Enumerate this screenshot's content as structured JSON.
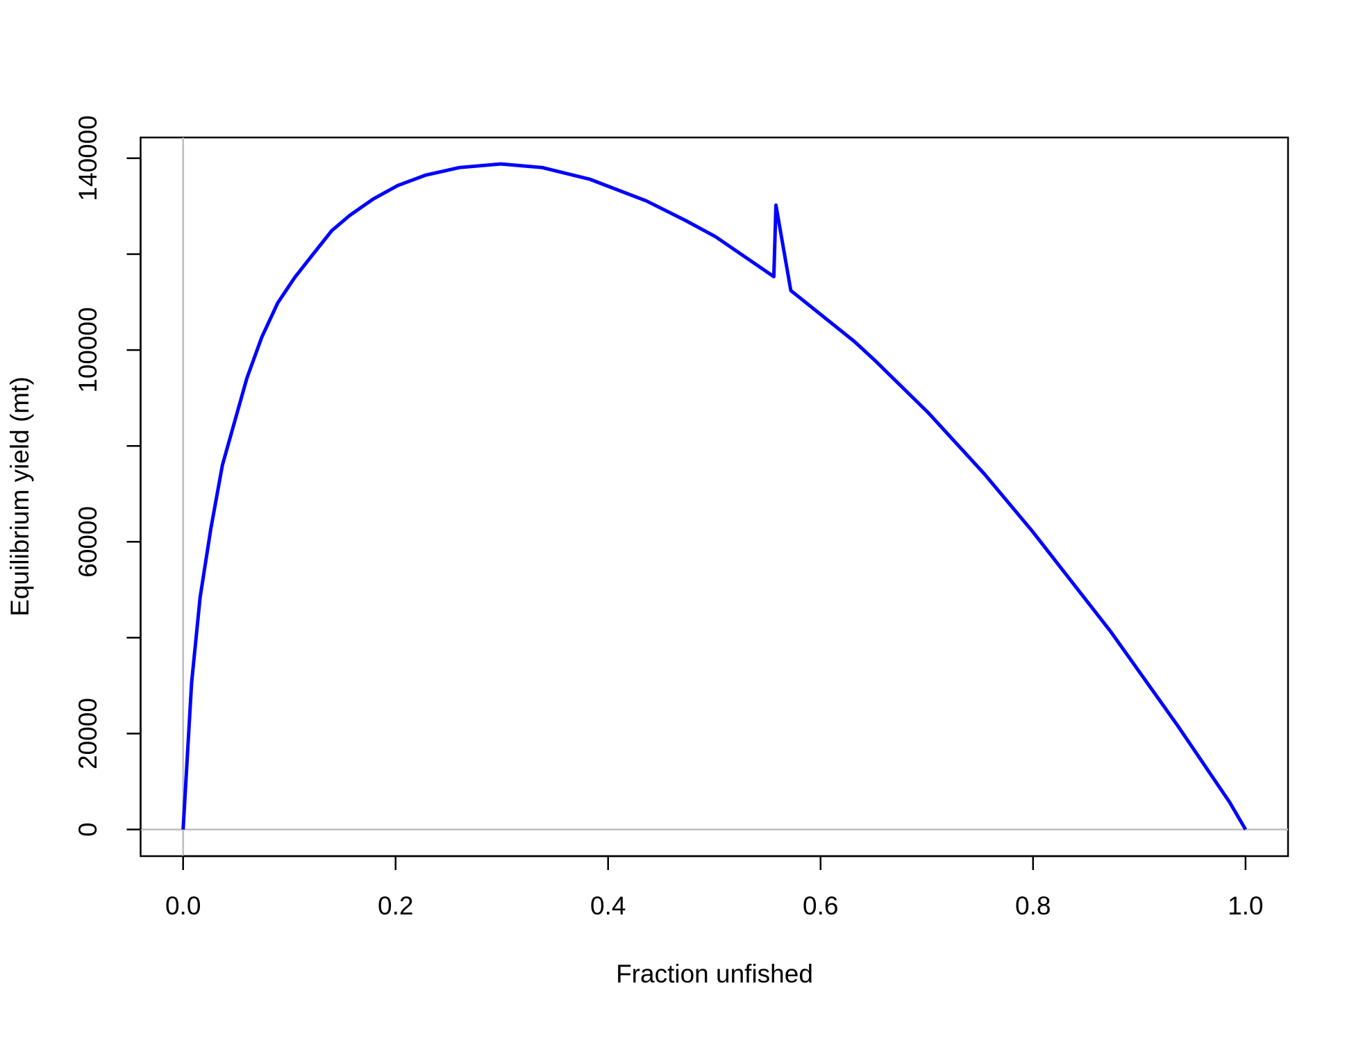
{
  "chart_data": {
    "type": "line",
    "xlabel": "Fraction unfished",
    "ylabel": "Equilibrium yield (mt)",
    "color": "#0000ff",
    "x": [
      0,
      0.008,
      0.016,
      0.026,
      0.037,
      0.046,
      0.06,
      0.074,
      0.089,
      0.105,
      0.122,
      0.14,
      0.157,
      0.179,
      0.202,
      0.228,
      0.26,
      0.299,
      0.338,
      0.383,
      0.436,
      0.473,
      0.501,
      0.556,
      0.558,
      0.572,
      0.632,
      0.652,
      0.701,
      0.754,
      0.799,
      0.873,
      0.936,
      0.985,
      1.0
    ],
    "values": [
      0,
      30600,
      48400,
      62600,
      76000,
      83100,
      94100,
      102650,
      109800,
      115100,
      119900,
      124900,
      128100,
      131500,
      134300,
      136450,
      138050,
      138800,
      138050,
      135600,
      131100,
      127000,
      123650,
      115300,
      130200,
      112400,
      101750,
      97650,
      87000,
      74200,
      62300,
      41300,
      21700,
      5700,
      0
    ],
    "xlim": [
      -0.04,
      1.04
    ],
    "ylim": [
      -5551,
      144321
    ],
    "xticks": [
      {
        "value": 0,
        "label": "0.0"
      },
      0.2,
      0.4,
      0.6,
      0.8,
      {
        "value": 1,
        "label": "1.0"
      }
    ],
    "yticks": [
      0,
      20000,
      40000,
      60000,
      80000,
      100000,
      120000,
      140000
    ],
    "hline": 0,
    "vline": 0,
    "reference_line_color": "#bebebe"
  }
}
